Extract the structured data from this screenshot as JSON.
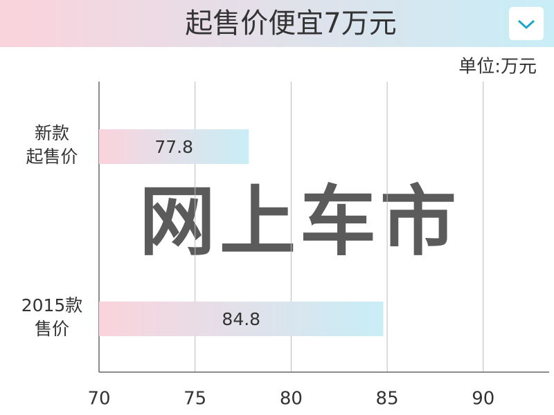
{
  "chart_data": {
    "type": "bar",
    "orientation": "horizontal",
    "title": "起售价便宜7万元",
    "unit_label": "单位:万元",
    "watermark": "网上车市",
    "categories": [
      "新款\n起售价",
      "2015款\n售价"
    ],
    "values": [
      77.8,
      84.8
    ],
    "color_start": "#fbd3dc",
    "color_end": "#c8eef7",
    "xlim": [
      70,
      93
    ],
    "xticks": [
      70,
      75,
      80,
      85,
      90
    ],
    "grid": true
  }
}
